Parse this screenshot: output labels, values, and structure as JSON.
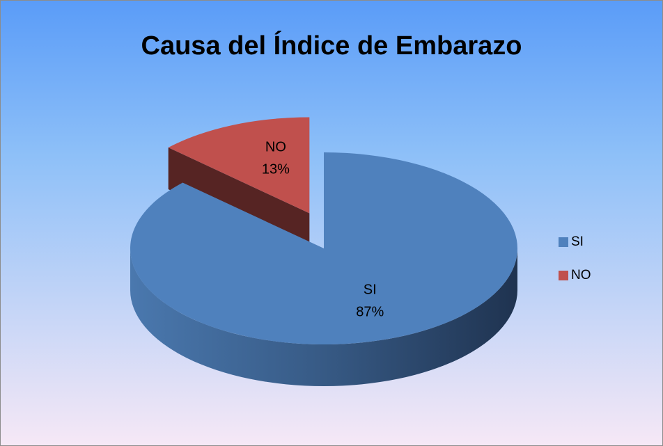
{
  "chart_data": {
    "type": "pie3d",
    "title": "Causa del Índice de Embarazo",
    "categories": [
      "SI",
      "NO"
    ],
    "values": [
      87,
      13
    ],
    "value_labels": [
      "87%",
      "13%"
    ],
    "colors": [
      "#4f81bd",
      "#c0504d"
    ],
    "legend": "right"
  }
}
